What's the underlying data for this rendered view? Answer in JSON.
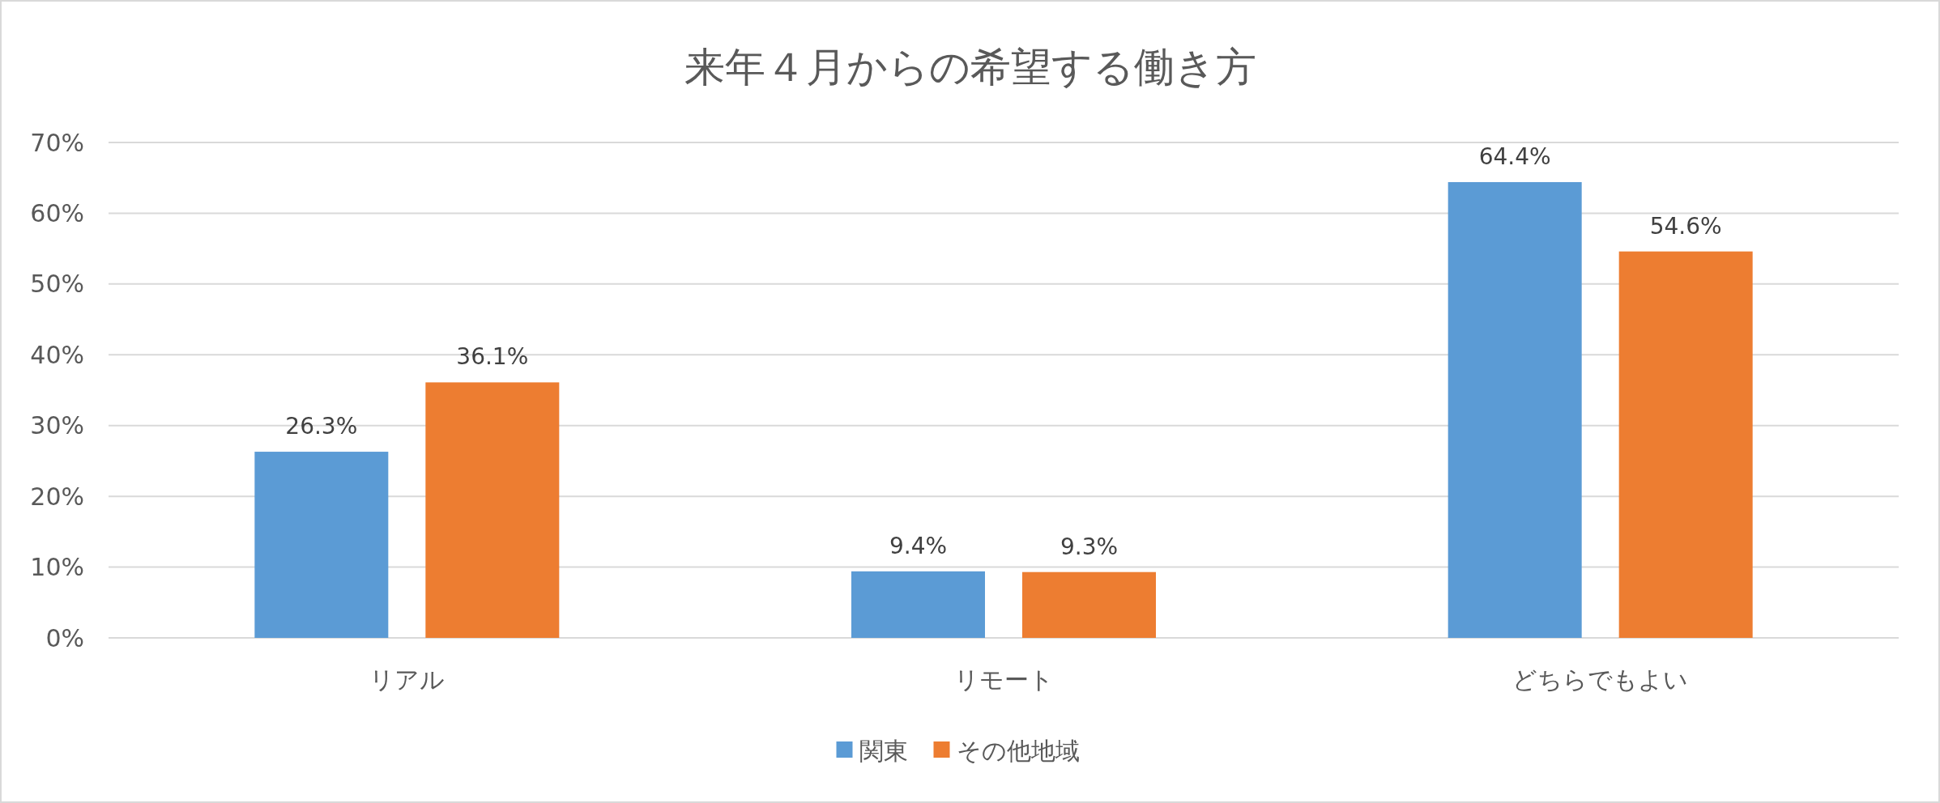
{
  "chart_data": {
    "type": "bar",
    "title": "来年４月からの希望する働き方",
    "categories": [
      "リアル",
      "リモート",
      "どちらでもよい"
    ],
    "series": [
      {
        "name": "関東",
        "color": "#5b9bd5",
        "values": [
          26.3,
          9.4,
          64.4
        ],
        "value_labels": [
          "26.3%",
          "9.4%",
          "64.4%"
        ]
      },
      {
        "name": "その他地域",
        "color": "#ed7d31",
        "values": [
          36.1,
          9.3,
          54.6
        ],
        "value_labels": [
          "36.1%",
          "9.3%",
          "54.6%"
        ]
      }
    ],
    "ylim": [
      0,
      70
    ],
    "yticks": [
      {
        "value": 0,
        "label": "0%"
      },
      {
        "value": 10,
        "label": "10%"
      },
      {
        "value": 20,
        "label": "20%"
      },
      {
        "value": 30,
        "label": "30%"
      },
      {
        "value": 40,
        "label": "40%"
      },
      {
        "value": 50,
        "label": "50%"
      },
      {
        "value": 60,
        "label": "60%"
      },
      {
        "value": 70,
        "label": "70%"
      }
    ],
    "grid": "y",
    "legend": "bottom"
  }
}
